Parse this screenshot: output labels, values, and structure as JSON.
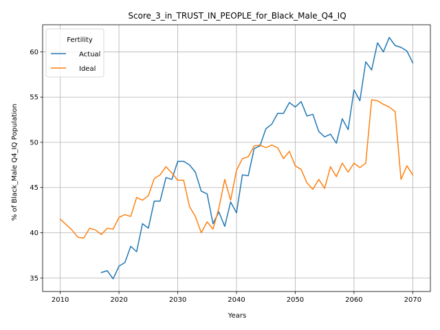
{
  "chart_data": {
    "type": "line",
    "title": "Score_3_in_TRUST_IN_PEOPLE_for_Black_Male_Q4_IQ",
    "xlabel": "Years",
    "ylabel": "% of Black_Male Q4_IQ Population",
    "xlim": [
      2007,
      2073
    ],
    "ylim": [
      33.5,
      63
    ],
    "xticks": [
      2010,
      2020,
      2030,
      2040,
      2050,
      2060,
      2070
    ],
    "yticks": [
      35,
      40,
      45,
      50,
      55,
      60
    ],
    "grid": true,
    "legend": {
      "title": "Fertility",
      "placement": "top-left"
    },
    "series": [
      {
        "name": "Actual",
        "color": "#1f77b4",
        "x": [
          2017,
          2018,
          2019,
          2020,
          2021,
          2022,
          2023,
          2024,
          2025,
          2026,
          2027,
          2028,
          2029,
          2030,
          2031,
          2032,
          2033,
          2034,
          2035,
          2036,
          2037,
          2038,
          2039,
          2040,
          2041,
          2042,
          2043,
          2044,
          2045,
          2046,
          2047,
          2048,
          2049,
          2050,
          2051,
          2052,
          2053,
          2054,
          2055,
          2056,
          2057,
          2058,
          2059,
          2060,
          2061,
          2062,
          2063,
          2064,
          2065,
          2066,
          2067,
          2068,
          2069,
          2070
        ],
        "values": [
          35.6,
          35.8,
          34.9,
          36.3,
          36.7,
          38.5,
          37.9,
          41.0,
          40.5,
          43.5,
          43.5,
          46.1,
          45.9,
          47.9,
          47.9,
          47.5,
          46.7,
          44.6,
          44.3,
          41.0,
          42.3,
          40.7,
          43.4,
          42.2,
          46.4,
          46.3,
          49.3,
          49.6,
          51.5,
          52.0,
          53.2,
          53.2,
          54.4,
          53.9,
          54.5,
          52.9,
          53.1,
          51.2,
          50.6,
          50.9,
          49.9,
          52.6,
          51.4,
          55.8,
          54.6,
          58.9,
          58.0,
          61.0,
          60.0,
          61.6,
          60.7,
          60.5,
          60.1,
          58.8
        ]
      },
      {
        "name": "Ideal",
        "color": "#ff7f0e",
        "x": [
          2010,
          2011,
          2012,
          2013,
          2014,
          2015,
          2016,
          2017,
          2018,
          2019,
          2020,
          2021,
          2022,
          2023,
          2024,
          2025,
          2026,
          2027,
          2028,
          2029,
          2030,
          2031,
          2032,
          2033,
          2034,
          2035,
          2036,
          2037,
          2038,
          2039,
          2040,
          2041,
          2042,
          2043,
          2044,
          2045,
          2046,
          2047,
          2048,
          2049,
          2050,
          2051,
          2052,
          2053,
          2054,
          2055,
          2056,
          2057,
          2058,
          2059,
          2060,
          2061,
          2062,
          2063,
          2064,
          2065,
          2066,
          2067,
          2068,
          2069,
          2070
        ],
        "values": [
          41.5,
          40.9,
          40.3,
          39.5,
          39.4,
          40.5,
          40.3,
          39.8,
          40.5,
          40.4,
          41.7,
          42.0,
          41.8,
          43.9,
          43.6,
          44.1,
          46.0,
          46.4,
          47.3,
          46.6,
          45.8,
          45.8,
          42.9,
          41.8,
          40.0,
          41.2,
          40.4,
          42.7,
          45.9,
          43.6,
          46.9,
          48.2,
          48.4,
          49.6,
          49.7,
          49.4,
          49.7,
          49.4,
          48.2,
          49.0,
          47.4,
          47.0,
          45.5,
          44.8,
          45.9,
          44.9,
          47.3,
          46.2,
          47.7,
          46.7,
          47.7,
          47.2,
          47.7,
          54.7,
          54.6,
          54.2,
          53.9,
          53.4,
          45.9,
          47.4,
          46.4
        ]
      }
    ]
  }
}
